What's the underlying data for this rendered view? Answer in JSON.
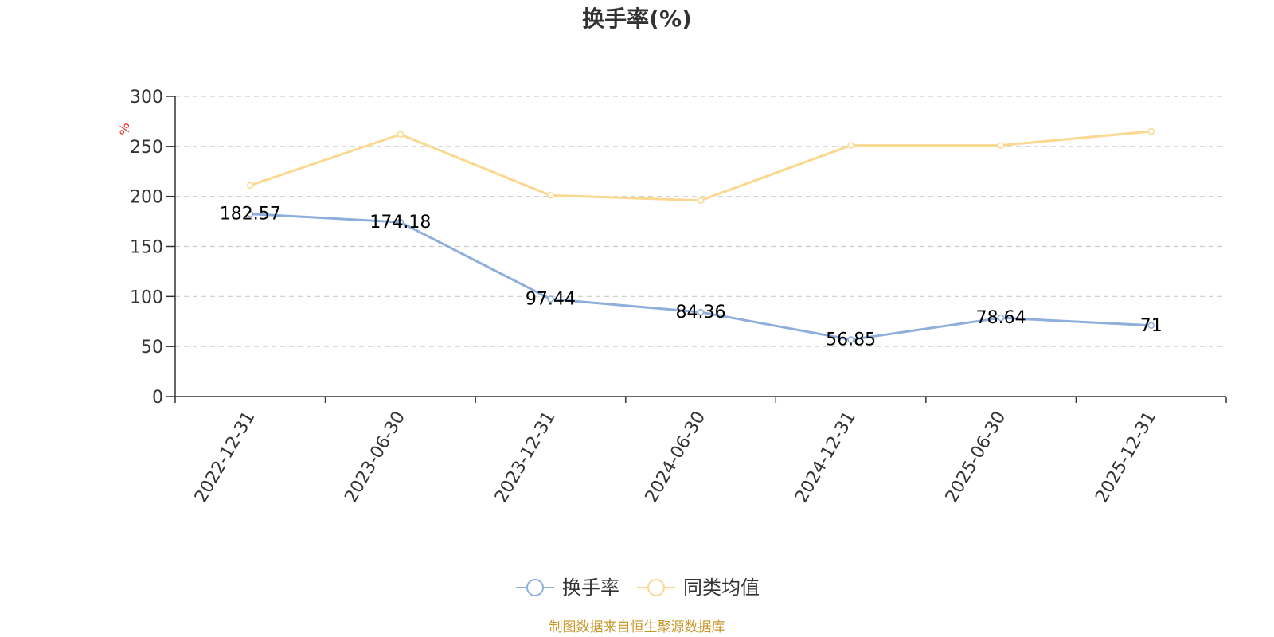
{
  "chart_data": {
    "type": "line",
    "title": "换手率(%)",
    "ylabel": "%",
    "xlabel": "",
    "categories": [
      "2022-12-31",
      "2023-06-30",
      "2023-12-31",
      "2024-06-30",
      "2024-12-31",
      "2025-06-30",
      "2025-12-31"
    ],
    "ylim": [
      0,
      300
    ],
    "yticks": [
      0,
      50,
      100,
      150,
      200,
      250,
      300
    ],
    "grid": true,
    "legend_position": "bottom",
    "series": [
      {
        "name": "换手率",
        "color": "#8eaedc",
        "values": [
          182.57,
          174.18,
          97.44,
          84.36,
          56.85,
          78.64,
          71
        ],
        "labels": [
          "182.57",
          "174.18",
          "97.44",
          "84.36",
          "56.85",
          "78.64",
          "71"
        ]
      },
      {
        "name": "同类均值",
        "color": "#fbd88f",
        "values": [
          211,
          262,
          201,
          196,
          251,
          251,
          265
        ]
      }
    ]
  },
  "colors": {
    "unit_label": "#e8271a",
    "source_text": "#c8972a",
    "grid": "#cccccc",
    "axis": "#333333"
  },
  "source": "制图数据来自恒生聚源数据库"
}
